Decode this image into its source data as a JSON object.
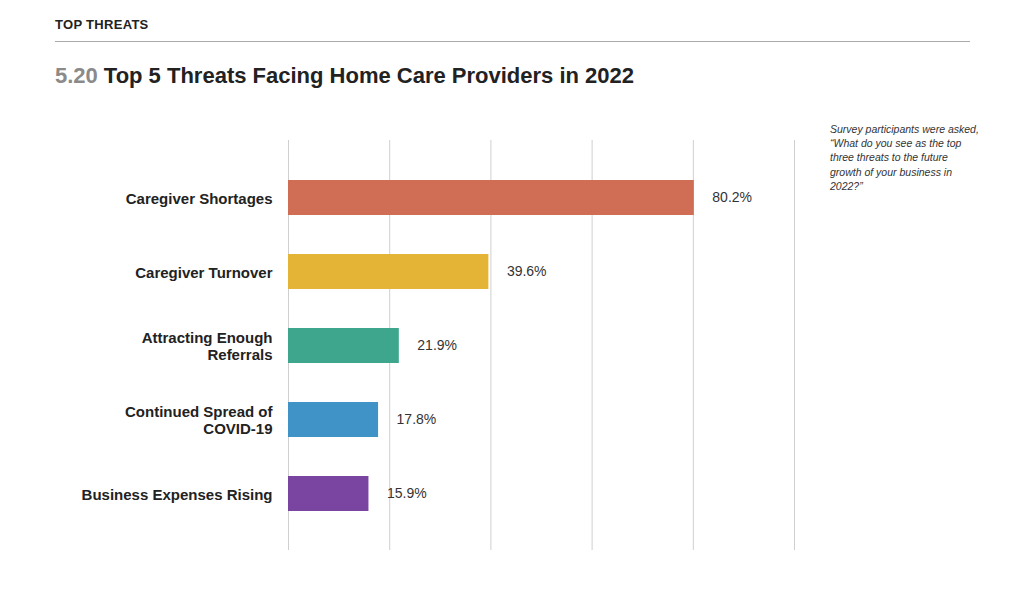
{
  "chart_data": {
    "type": "bar",
    "header": "TOP THREATS",
    "number": "5.20",
    "title": "Top 5 Threats Facing Home Care Providers in 2022",
    "annotations": [
      "Survey participants were asked, “What do you see as the top three threats to the future growth of your business in 2022?”"
    ],
    "orientation": "horizontal",
    "categories": [
      "Caregiver Shortages",
      "Caregiver Turnover",
      "Attracting Enough\nReferrals",
      "Continued Spread of\nCOVID-19",
      "Business Expenses Rising"
    ],
    "values": [
      80.2,
      39.6,
      21.9,
      17.8,
      15.9
    ],
    "value_labels": [
      "80.2%",
      "39.6%",
      "21.9%",
      "17.8%",
      "15.9%"
    ],
    "colors": [
      "#cf6e55",
      "#e3b436",
      "#3ea68c",
      "#3f93c6",
      "#7a45a0"
    ],
    "xlim": [
      0,
      100
    ],
    "xticks": [
      0,
      20,
      40,
      60,
      80,
      100
    ],
    "grid": true,
    "data_labels": true,
    "tick_labels": "y"
  }
}
